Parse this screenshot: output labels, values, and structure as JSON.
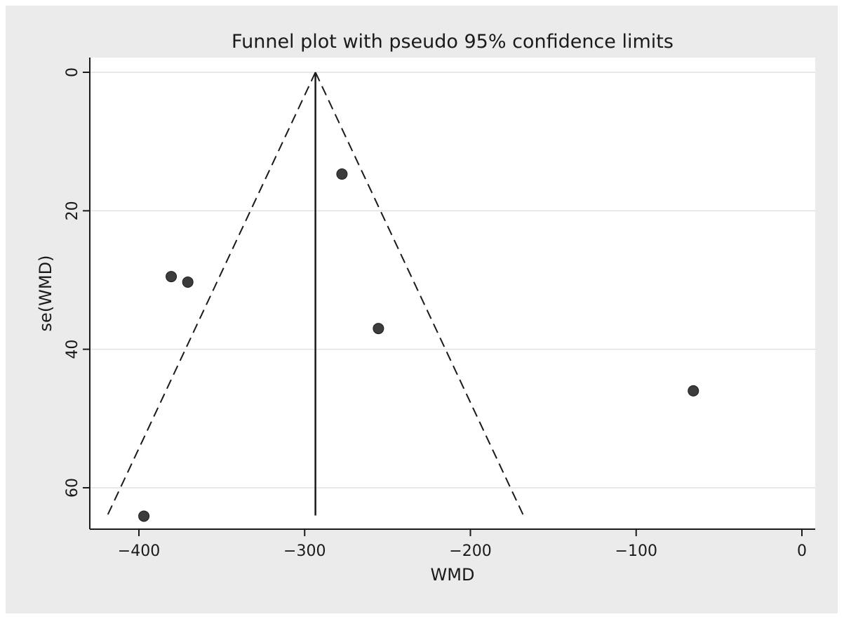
{
  "chart_data": {
    "type": "scatter",
    "title": "Funnel plot with pseudo 95% confidence limits",
    "xlabel": "WMD",
    "ylabel": "se(WMD)",
    "xlim": [
      -425,
      7
    ],
    "ylim": [
      0,
      66
    ],
    "y_reversed": true,
    "x_ticks": [
      {
        "value": -400,
        "label": "−400"
      },
      {
        "value": -300,
        "label": "−300"
      },
      {
        "value": -200,
        "label": "−200"
      },
      {
        "value": -100,
        "label": "−100"
      },
      {
        "value": 0,
        "label": "0"
      }
    ],
    "y_ticks": [
      {
        "value": 0,
        "label": "0"
      },
      {
        "value": 20,
        "label": "20"
      },
      {
        "value": 40,
        "label": "40"
      },
      {
        "value": 60,
        "label": "60"
      }
    ],
    "grid": "horizontal",
    "pooled_effect": -293.5,
    "pooled_line_se_range": [
      0,
      64
    ],
    "confidence_limits": {
      "apex": [
        -293.5,
        0
      ],
      "left_end": [
        -419,
        64
      ],
      "right_end": [
        -168,
        64
      ]
    },
    "points": [
      {
        "x": -277.5,
        "y": 14.7
      },
      {
        "x": -380.5,
        "y": 29.5
      },
      {
        "x": -370.5,
        "y": 30.3
      },
      {
        "x": -255.5,
        "y": 37
      },
      {
        "x": -65.5,
        "y": 46
      },
      {
        "x": -397,
        "y": 64.1
      }
    ],
    "colors": {
      "frame_bg": "#ebebeb",
      "plot_bg": "#ffffff",
      "grid": "#e0e0e0",
      "ink": "#1a1a1a",
      "marker": "#3c3c3c"
    }
  }
}
